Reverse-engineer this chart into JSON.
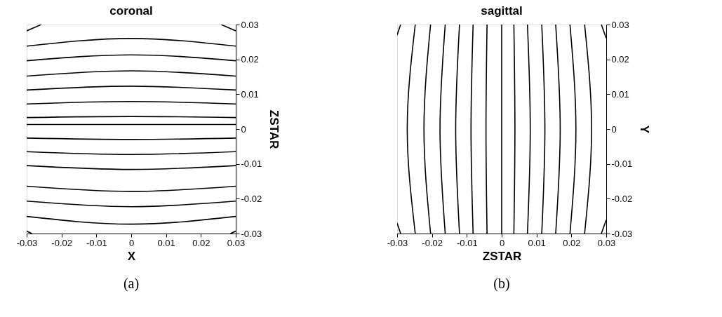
{
  "chart_data": [
    {
      "type": "line",
      "title": "coronal",
      "xlabel": "X",
      "ylabel": "ZSTAR",
      "xlim": [
        -0.03,
        0.03
      ],
      "ylim": [
        -0.03,
        0.03
      ],
      "xticks": [
        -0.03,
        -0.02,
        -0.01,
        0,
        0.01,
        0.02,
        0.03
      ],
      "yticks": [
        -0.03,
        -0.02,
        -0.01,
        0,
        0.01,
        0.02,
        0.03
      ],
      "annotations": [
        "(a)"
      ],
      "series": [
        {
          "color": "#000000",
          "x": [
            -0.03,
            -0.0258
          ],
          "values": [
            0.0282,
            0.03
          ]
        },
        {
          "color": "#000000",
          "x": [
            0.0258,
            0.03
          ],
          "values": [
            0.03,
            0.0282
          ]
        },
        {
          "color": "#000000",
          "x": [
            -0.03,
            0,
            0.03
          ],
          "values": [
            0.0238,
            0.026,
            0.0238
          ]
        },
        {
          "color": "#000000",
          "x": [
            -0.03,
            0,
            0.03
          ],
          "values": [
            0.0196,
            0.0213,
            0.0196
          ]
        },
        {
          "color": "#000000",
          "x": [
            -0.03,
            0,
            0.03
          ],
          "values": [
            0.0152,
            0.0167,
            0.0152
          ]
        },
        {
          "color": "#000000",
          "x": [
            -0.03,
            0,
            0.03
          ],
          "values": [
            0.0112,
            0.0123,
            0.0112
          ]
        },
        {
          "color": "#000000",
          "x": [
            -0.03,
            0,
            0.03
          ],
          "values": [
            0.0072,
            0.0079,
            0.0072
          ]
        },
        {
          "color": "#000000",
          "x": [
            -0.03,
            0,
            0.03
          ],
          "values": [
            0.0033,
            0.0036,
            0.0033
          ]
        },
        {
          "color": "#000000",
          "x": [
            -0.03,
            0,
            0.03
          ],
          "values": [
            0.0013,
            0.0013,
            0.0013
          ]
        },
        {
          "color": "#000000",
          "x": [
            -0.03,
            0,
            0.03
          ],
          "values": [
            -0.0026,
            -0.003,
            -0.0026
          ]
        },
        {
          "color": "#000000",
          "x": [
            -0.03,
            0,
            0.03
          ],
          "values": [
            -0.0065,
            -0.0073,
            -0.0065
          ]
        },
        {
          "color": "#000000",
          "x": [
            -0.03,
            0,
            0.03
          ],
          "values": [
            -0.0105,
            -0.0116,
            -0.0105
          ]
        },
        {
          "color": "#000000",
          "x": [
            -0.03,
            0,
            0.03
          ],
          "values": [
            -0.0164,
            -0.0179,
            -0.0164
          ]
        },
        {
          "color": "#000000",
          "x": [
            -0.03,
            0,
            0.03
          ],
          "values": [
            -0.0207,
            -0.0223,
            -0.0207
          ]
        },
        {
          "color": "#000000",
          "x": [
            -0.03,
            0,
            0.03
          ],
          "values": [
            -0.0251,
            -0.0273,
            -0.0251
          ]
        },
        {
          "color": "#000000",
          "x": [
            -0.03,
            -0.0285
          ],
          "values": [
            -0.0293,
            -0.03
          ]
        },
        {
          "color": "#000000",
          "x": [
            0.0285,
            0.03
          ],
          "values": [
            -0.03,
            -0.0293
          ]
        }
      ]
    },
    {
      "type": "line",
      "title": "sagittal",
      "xlabel": "ZSTAR",
      "ylabel": "Y",
      "xlim": [
        -0.03,
        0.03
      ],
      "ylim": [
        -0.03,
        0.03
      ],
      "xticks": [
        -0.03,
        -0.02,
        -0.01,
        0,
        0.01,
        0.02,
        0.03
      ],
      "yticks": [
        -0.03,
        -0.02,
        -0.01,
        0,
        0.01,
        0.02,
        0.03
      ],
      "annotations": [
        "(b)"
      ],
      "series": [
        {
          "color": "#000000",
          "x": [
            -0.029,
            -0.03
          ],
          "values": [
            0.03,
            0.027
          ]
        },
        {
          "color": "#000000",
          "x": [
            -0.03,
            -0.029
          ],
          "values": [
            -0.027,
            -0.03
          ]
        },
        {
          "color": "#000000",
          "x": [
            -0.0248,
            -0.0271,
            -0.0248
          ],
          "values": [
            0.03,
            0,
            -0.03
          ]
        },
        {
          "color": "#000000",
          "x": [
            -0.0204,
            -0.0223,
            -0.0204
          ],
          "values": [
            0.03,
            0,
            -0.03
          ]
        },
        {
          "color": "#000000",
          "x": [
            -0.0162,
            -0.0177,
            -0.0162
          ],
          "values": [
            0.03,
            0,
            -0.03
          ]
        },
        {
          "color": "#000000",
          "x": [
            -0.0121,
            -0.0132,
            -0.0121
          ],
          "values": [
            0.03,
            0,
            -0.03
          ]
        },
        {
          "color": "#000000",
          "x": [
            -0.0082,
            -0.0088,
            -0.0082
          ],
          "values": [
            0.03,
            0,
            -0.03
          ]
        },
        {
          "color": "#000000",
          "x": [
            -0.0042,
            -0.0045,
            -0.0042
          ],
          "values": [
            0.03,
            0,
            -0.03
          ]
        },
        {
          "color": "#000000",
          "x": [
            0,
            0,
            0
          ],
          "values": [
            0.03,
            0,
            -0.03
          ]
        },
        {
          "color": "#000000",
          "x": [
            0.0035,
            0.0038,
            0.0035
          ],
          "values": [
            0.03,
            0,
            -0.03
          ]
        },
        {
          "color": "#000000",
          "x": [
            0.0074,
            0.0082,
            0.0074
          ],
          "values": [
            0.03,
            0,
            -0.03
          ]
        },
        {
          "color": "#000000",
          "x": [
            0.0115,
            0.0124,
            0.0115
          ],
          "values": [
            0.03,
            0,
            -0.03
          ]
        },
        {
          "color": "#000000",
          "x": [
            0.0155,
            0.0168,
            0.0155
          ],
          "values": [
            0.03,
            0,
            -0.03
          ]
        },
        {
          "color": "#000000",
          "x": [
            0.0196,
            0.0213,
            0.0196
          ],
          "values": [
            0.03,
            0,
            -0.03
          ]
        },
        {
          "color": "#000000",
          "x": [
            0.0238,
            0.0258,
            0.0238
          ],
          "values": [
            0.03,
            0,
            -0.03
          ]
        },
        {
          "color": "#000000",
          "x": [
            0.0286,
            0.03
          ],
          "values": [
            0.03,
            0.0261
          ]
        },
        {
          "color": "#000000",
          "x": [
            0.03,
            0.0286
          ],
          "values": [
            -0.0261,
            -0.03
          ]
        }
      ]
    }
  ]
}
